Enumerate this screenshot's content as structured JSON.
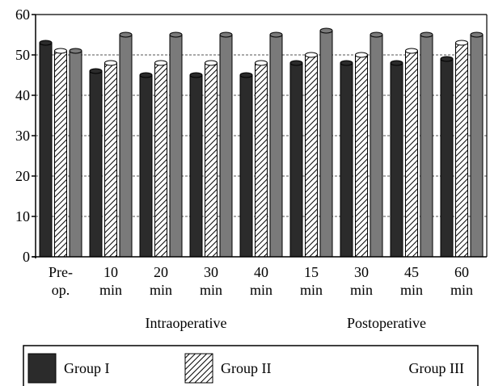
{
  "chart_data": {
    "type": "bar",
    "categories": [
      [
        "Pre-",
        "op."
      ],
      [
        "10",
        "min"
      ],
      [
        "20",
        "min"
      ],
      [
        "30",
        "min"
      ],
      [
        "40",
        "min"
      ],
      [
        "15",
        "min"
      ],
      [
        "30",
        "min"
      ],
      [
        "45",
        "min"
      ],
      [
        "60",
        "min"
      ]
    ],
    "groups": [
      {
        "label": "Intraoperative",
        "categories": [
          1,
          2,
          3,
          4
        ]
      },
      {
        "label": "Postoperative",
        "categories": [
          5,
          6,
          7,
          8
        ]
      }
    ],
    "series": [
      {
        "name": "Group I",
        "color": "#2b2b2b",
        "pattern": "solid",
        "values": [
          53,
          46,
          45,
          45,
          45,
          48,
          48,
          48,
          49
        ]
      },
      {
        "name": "Group II",
        "color": "#ffffff",
        "pattern": "hatch",
        "values": [
          51,
          48,
          48,
          48,
          48,
          50,
          50,
          51,
          53
        ]
      },
      {
        "name": "Group III",
        "color": "#7a7a7a",
        "pattern": "solid",
        "values": [
          51,
          55,
          55,
          55,
          55,
          56,
          55,
          55,
          55
        ]
      }
    ],
    "ylim": [
      0,
      60
    ],
    "yticks": [
      0,
      10,
      20,
      30,
      40,
      50,
      60
    ],
    "grid": "horizontal dashed",
    "legend_position": "bottom",
    "title": "",
    "xlabel": "",
    "ylabel": ""
  }
}
